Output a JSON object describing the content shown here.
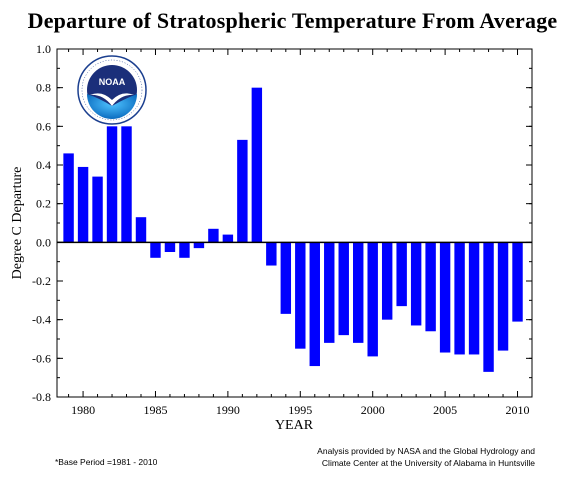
{
  "title": "Departure of Stratospheric Temperature From Average",
  "footnote": "*Base Period =1981 - 2010",
  "credit": {
    "line1": "Analysis provided by NASA and the Global Hydrology and",
    "line2": "Climate Center at the University of Alabama in Huntsville"
  },
  "logo": {
    "text": "NOAA",
    "ring_text": "NATIONAL OCEANIC AND ATMOSPHERIC ADMINISTRATION · U.S. DEPARTMENT OF COMMERCE"
  },
  "colors": {
    "bar": "#0000ff",
    "axis": "#000000"
  },
  "chart_data": {
    "type": "bar",
    "xlabel": "YEAR",
    "ylabel": "Degree C Departure",
    "x": [
      1979,
      1980,
      1981,
      1982,
      1983,
      1984,
      1985,
      1986,
      1987,
      1988,
      1989,
      1990,
      1991,
      1992,
      1993,
      1994,
      1995,
      1996,
      1997,
      1998,
      1999,
      2000,
      2001,
      2002,
      2003,
      2004,
      2005,
      2006,
      2007,
      2008,
      2009,
      2010
    ],
    "values": [
      0.46,
      0.39,
      0.34,
      0.6,
      0.6,
      0.13,
      -0.08,
      -0.05,
      -0.08,
      -0.03,
      0.07,
      0.04,
      0.53,
      0.8,
      -0.12,
      -0.37,
      -0.55,
      -0.64,
      -0.52,
      -0.48,
      -0.52,
      -0.59,
      -0.4,
      -0.33,
      -0.43,
      -0.46,
      -0.57,
      -0.58,
      -0.58,
      -0.67,
      -0.56,
      -0.41
    ],
    "xlim": [
      1978.2,
      2011
    ],
    "ylim": [
      -0.8,
      1.0
    ],
    "yticks": [
      "1.0",
      "0.8",
      "0.6",
      "0.4",
      "0.2",
      "0.0",
      "-0.2",
      "-0.4",
      "-0.6",
      "-0.8"
    ],
    "xticks": [
      "1980",
      "1985",
      "1990",
      "1995",
      "2000",
      "2005",
      "2010"
    ],
    "grid": false
  }
}
